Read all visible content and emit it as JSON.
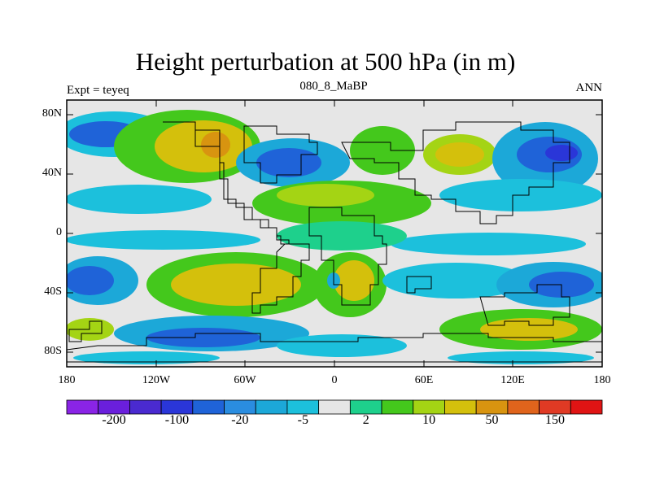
{
  "title": "Height perturbation at 500 hPa (in m)",
  "subtitle_left": "Expt = teyeq",
  "subtitle_center": "080_8_MaBP",
  "subtitle_right": "ANN",
  "lat_labels": [
    "80N",
    "40N",
    "0",
    "40S",
    "80S"
  ],
  "lon_labels": [
    "180",
    "120W",
    "60W",
    "0",
    "60E",
    "120E",
    "180"
  ],
  "colorbar": {
    "colors": [
      "#8a24e6",
      "#6a1fdc",
      "#4a2ad0",
      "#2a36d8",
      "#1f63d8",
      "#2a8de0",
      "#1ca8d8",
      "#1cc0dc",
      "#e6e6e6",
      "#1ed08c",
      "#44c81c",
      "#a4d414",
      "#d4c00c",
      "#d89410",
      "#e0641c",
      "#e03a24",
      "#e01414"
    ],
    "labels": [
      "-200",
      "-100",
      "-20",
      "-5",
      "2",
      "10",
      "50",
      "150"
    ]
  },
  "legend_colors": {
    "land_outline": "#000000",
    "background": "#e6e6e6"
  }
}
